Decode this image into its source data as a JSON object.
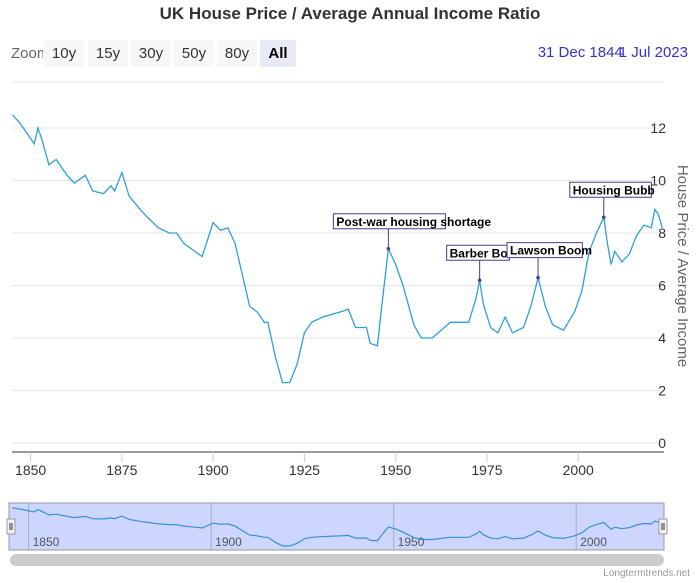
{
  "chart_data": {
    "type": "line",
    "title": "UK House Price / Average Annual Income Ratio",
    "ylabel": "House Price / Average Income",
    "xlabel": "",
    "xlim": [
      1844.9,
      2023.5
    ],
    "ylim": [
      0,
      13.5
    ],
    "yticks": [
      0,
      2,
      4,
      6,
      8,
      10,
      12
    ],
    "xticks": [
      1850,
      1875,
      1900,
      1925,
      1950,
      1975,
      2000
    ],
    "navigator_ticks": [
      1850,
      1900,
      1950,
      2000
    ],
    "grid": true,
    "line_color": "#2f9fdc",
    "x": [
      1845,
      1847,
      1850,
      1851,
      1852,
      1853,
      1855,
      1857,
      1860,
      1862,
      1865,
      1867,
      1870,
      1872,
      1873,
      1875,
      1877,
      1880,
      1882,
      1885,
      1888,
      1890,
      1892,
      1895,
      1897,
      1900,
      1902,
      1904,
      1906,
      1908,
      1910,
      1912,
      1914,
      1915,
      1917,
      1919,
      1921,
      1923,
      1925,
      1927,
      1930,
      1935,
      1937,
      1939,
      1942,
      1943,
      1945,
      1946,
      1948,
      1950,
      1952,
      1955,
      1957,
      1960,
      1965,
      1970,
      1972,
      1973,
      1974,
      1976,
      1978,
      1980,
      1982,
      1985,
      1987,
      1989,
      1991,
      1993,
      1996,
      1999,
      2001,
      2003,
      2005,
      2007,
      2008,
      2009,
      2010,
      2012,
      2014,
      2016,
      2018,
      2020,
      2021,
      2022,
      2023
    ],
    "y": [
      12.5,
      12.2,
      11.6,
      11.4,
      12.0,
      11.6,
      10.6,
      10.8,
      10.2,
      9.9,
      10.2,
      9.6,
      9.5,
      9.8,
      9.6,
      10.3,
      9.4,
      8.9,
      8.6,
      8.2,
      8.0,
      8.0,
      7.6,
      7.3,
      7.1,
      8.4,
      8.1,
      8.2,
      7.6,
      6.4,
      5.2,
      5.0,
      4.6,
      4.6,
      3.3,
      2.3,
      2.3,
      3.0,
      4.2,
      4.6,
      4.8,
      5.0,
      5.1,
      4.4,
      4.4,
      3.8,
      3.7,
      5.0,
      7.4,
      6.8,
      6.0,
      4.5,
      4.0,
      4.0,
      4.6,
      4.6,
      5.5,
      6.2,
      5.3,
      4.4,
      4.2,
      4.8,
      4.2,
      4.4,
      5.2,
      6.3,
      5.2,
      4.5,
      4.3,
      5.0,
      5.8,
      7.3,
      8.0,
      8.6,
      7.6,
      6.8,
      7.3,
      6.9,
      7.2,
      7.9,
      8.3,
      8.2,
      8.9,
      8.7,
      8.2
    ],
    "annotations": [
      {
        "text": "Post-war housing shortage",
        "x": 1948,
        "y": 7.4
      },
      {
        "text": "Barber Boom",
        "shown": "Barber Bo",
        "x": 1973,
        "y": 6.2
      },
      {
        "text": "Lawson Boom",
        "x": 1989,
        "y": 6.3
      },
      {
        "text": "Housing Bubble",
        "shown": "Housing Bubb",
        "x": 2007,
        "y": 8.6
      }
    ]
  },
  "toolbar": {
    "zoom_label": "Zoom",
    "buttons": [
      "10y",
      "15y",
      "30y",
      "50y",
      "80y",
      "All"
    ],
    "selected": "All",
    "range_from": "31 Dec 1844",
    "range_to": "1 Jul 2023"
  },
  "credit": "Longtermtrends.net"
}
